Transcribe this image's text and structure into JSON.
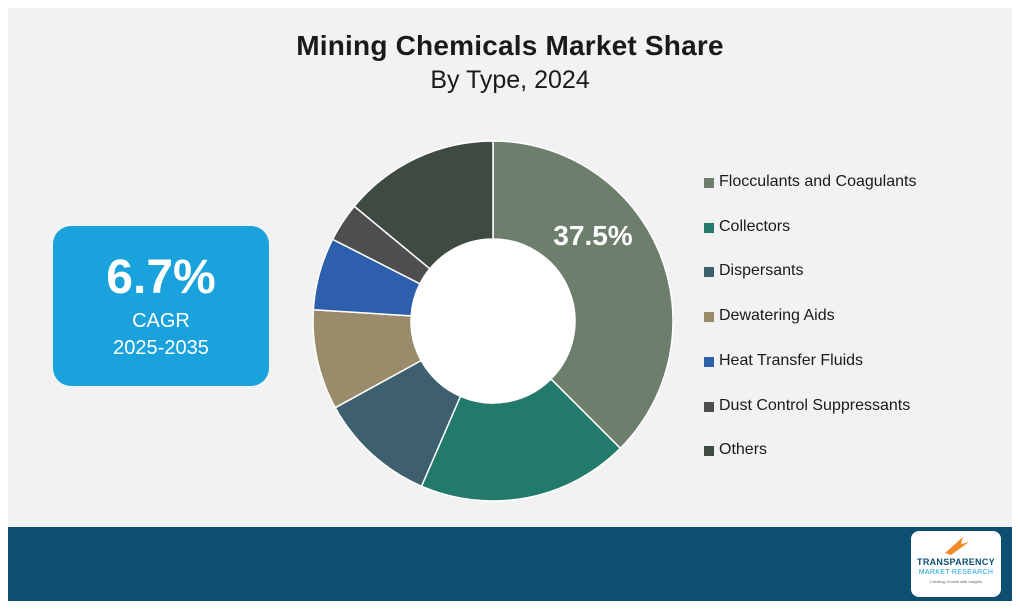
{
  "title": "Mining Chemicals Market Share",
  "subtitle": "By Type, 2024",
  "cagr": {
    "value": "6.7%",
    "label": "CAGR",
    "period": "2025-2035"
  },
  "logo": {
    "line1": "TRANSPARENCY",
    "line2": "MARKET RESEARCH",
    "line3": "Creating Growth with Insights",
    "icon": "upward-arrow-logo-icon"
  },
  "colors": {
    "background": "#f2f2f2",
    "cagr_box": "#1aa2dc",
    "bottom_bar": "#0d4f70"
  },
  "chart_data": {
    "type": "pie",
    "style": "donut",
    "legend_position": "right",
    "data_label": "37.5%",
    "categories": [
      "Flocculants and Coagulants",
      "Collectors",
      "Dispersants",
      "Dewatering Aids",
      "Heat Transfer Fluids",
      "Dust Control Suppressants",
      "Others"
    ],
    "values": [
      37.5,
      19.0,
      10.5,
      9.0,
      6.5,
      3.5,
      14.0
    ],
    "colors": [
      "#6d7f6c",
      "#217a6a",
      "#3d5f6e",
      "#9a8c6a",
      "#2e5fac",
      "#4e4e4e",
      "#3f4a42"
    ]
  }
}
